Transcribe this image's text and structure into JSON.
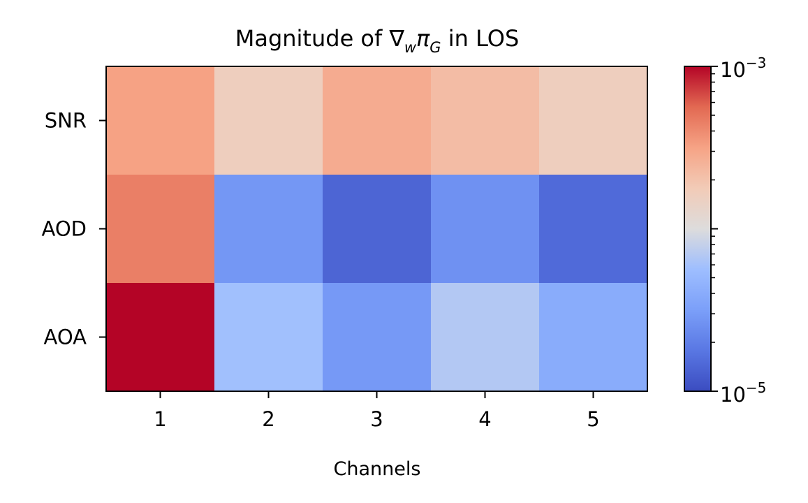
{
  "chart_data": {
    "type": "heatmap",
    "title": {
      "prefix": "Magnitude of ",
      "symbol": "∇",
      "sub_w": "w",
      "pi": "π",
      "sub_g": "G",
      "suffix": " in LOS"
    },
    "xlabel": "Channels",
    "ylabel": "",
    "x_categories": [
      "1",
      "2",
      "3",
      "4",
      "5"
    ],
    "y_categories": [
      "SNR",
      "AOD",
      "AOA"
    ],
    "values": [
      [
        0.00032,
        0.00016,
        0.00028,
        0.00022,
        0.00016
      ],
      [
        0.00045,
        2.8e-05,
        1.4e-05,
        2.6e-05,
        1.5e-05
      ],
      [
        0.001,
        5.8e-05,
        2.9e-05,
        6.8e-05,
        4e-05
      ]
    ],
    "colormap": "coolwarm",
    "color_scale": "log",
    "colorbar": {
      "min": 1e-05,
      "max": 0.001,
      "labels": [
        {
          "base": "10",
          "exp": "−3",
          "value": 0.001
        },
        {
          "base": "10",
          "exp": "−5",
          "value": 1e-05
        }
      ]
    },
    "grid": false
  }
}
